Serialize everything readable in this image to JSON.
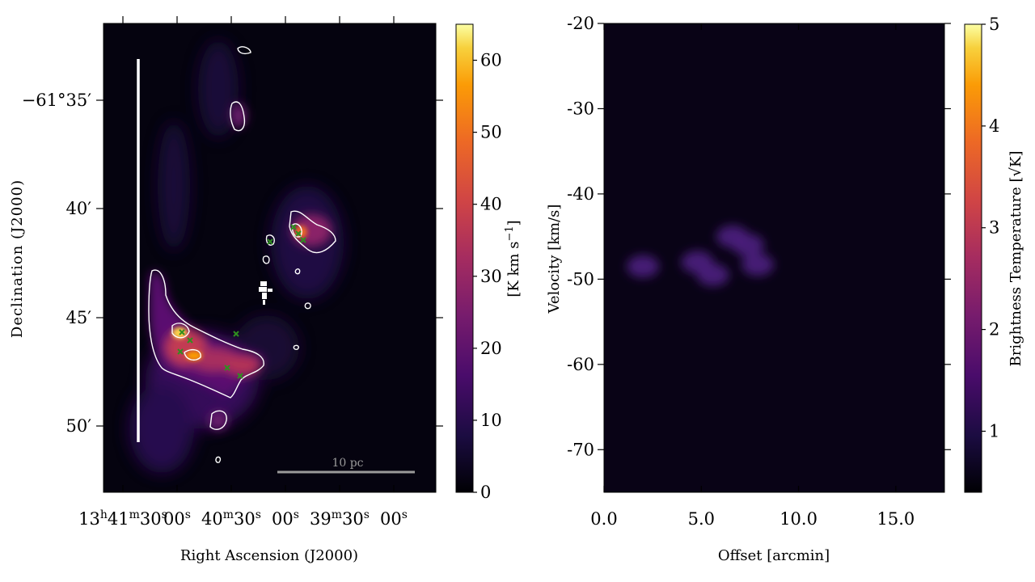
{
  "colors": {
    "background_map": "#05030f",
    "contour": "#ffffff",
    "marker": "#2f8f1f",
    "scalebar": "#9a9a9a",
    "slit": "#ffffff"
  },
  "colormap": "inferno",
  "chart_data": [
    {
      "type": "heatmap",
      "panel": "left",
      "xlabel": "Right Ascension (J2000)",
      "ylabel": "Declination (J2000)",
      "x_tick_labels": [
        {
          "text": "13h41m30s",
          "parts": [
            "13",
            "h",
            "41",
            "m",
            "30",
            "s"
          ]
        },
        {
          "text": "00s",
          "parts": [
            "00",
            "s"
          ]
        },
        {
          "text": "40m30s",
          "parts": [
            "40",
            "m",
            "30",
            "s"
          ]
        },
        {
          "text": "00s",
          "parts": [
            "00",
            "s"
          ]
        },
        {
          "text": "39m30s",
          "parts": [
            "39",
            "m",
            "30",
            "s"
          ]
        },
        {
          "text": "00s",
          "parts": [
            "00",
            "s"
          ]
        }
      ],
      "y_tick_labels": [
        "−61°35′",
        "40′",
        "45′",
        "50′"
      ],
      "colorbar": {
        "label": "[K km s−1]",
        "label_parts": [
          "[K km s",
          "−1",
          "]"
        ],
        "range": [
          0,
          65
        ],
        "ticks": [
          0,
          10,
          20,
          30,
          40,
          50,
          60
        ]
      },
      "scalebar_label": "10 pc",
      "legend": "none",
      "grid": false
    },
    {
      "type": "heatmap",
      "panel": "right",
      "xlabel": "Offset [arcmin]",
      "ylabel": "Velocity [km/s]",
      "x_ticks": [
        0.0,
        5.0,
        10.0,
        15.0
      ],
      "x_tick_labels": [
        "0.0",
        "5.0",
        "10.0",
        "15.0"
      ],
      "xlim": [
        0,
        17.5
      ],
      "y_ticks": [
        -20,
        -30,
        -40,
        -50,
        -60,
        -70
      ],
      "y_tick_labels": [
        "-20",
        "-30",
        "-40",
        "-50",
        "-60",
        "-70"
      ],
      "ylim": [
        -75,
        -20
      ],
      "emission_blobs": [
        {
          "offset": 2.0,
          "velocity": -48.5
        },
        {
          "offset": 4.8,
          "velocity": -48.0
        },
        {
          "offset": 5.6,
          "velocity": -49.5
        },
        {
          "offset": 6.6,
          "velocity": -45.0
        },
        {
          "offset": 7.4,
          "velocity": -46.0
        },
        {
          "offset": 7.9,
          "velocity": -48.3
        }
      ],
      "colorbar": {
        "label": "Brightness Temperature [√K]",
        "label_parts": [
          "Brightness Temperature [",
          "√K",
          "]"
        ],
        "range": [
          0.4,
          5
        ],
        "ticks": [
          1,
          2,
          3,
          4,
          5
        ]
      },
      "legend": "none",
      "grid": false
    }
  ]
}
